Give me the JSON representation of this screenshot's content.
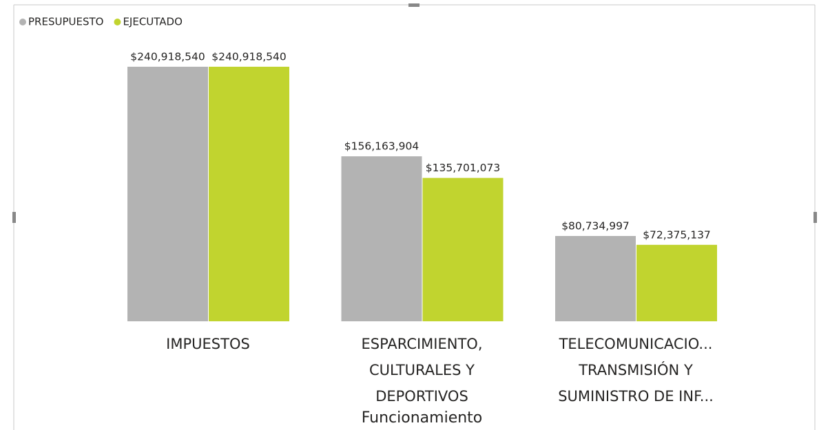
{
  "chart_data": {
    "type": "bar",
    "categories": [
      "IMPUESTOS",
      "ESPARCIMIENTO, CULTURALES Y DEPORTIVOS",
      "TELECOMUNICACIO... TRANSMISIÓN Y SUMINISTRO DE INF..."
    ],
    "x_label": "Funcionamiento",
    "series": [
      {
        "name": "PRESUPUESTO",
        "color": "#b3b3b3",
        "values": [
          240918540,
          156163904,
          80734997
        ],
        "value_labels": [
          "$240,918,540",
          "$156,163,904",
          "$80,734,997"
        ]
      },
      {
        "name": "EJECUTADO",
        "color": "#c1d42f",
        "values": [
          240918540,
          135701073,
          72375137
        ],
        "value_labels": [
          "$240,918,540",
          "$135,701,073",
          "$72,375,137"
        ]
      }
    ],
    "legend": "top-left"
  }
}
